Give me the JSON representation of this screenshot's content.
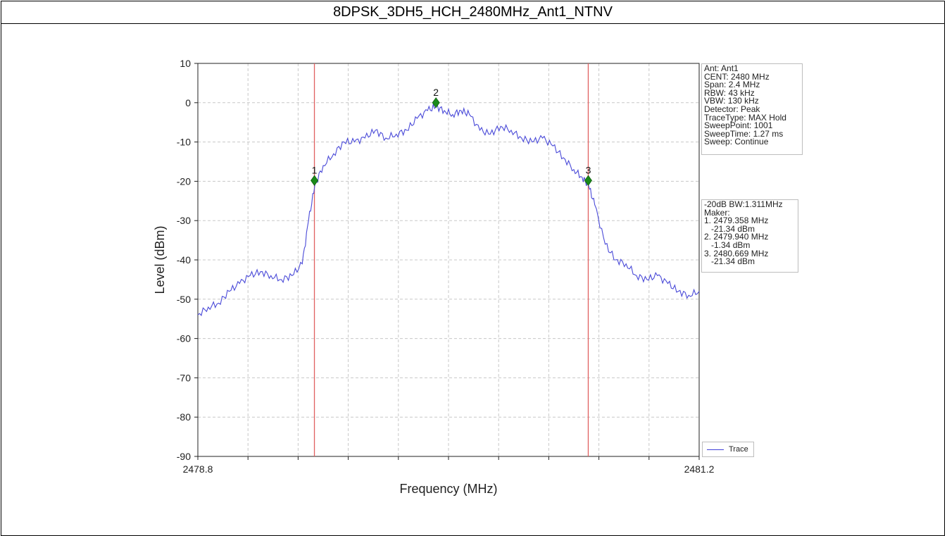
{
  "window": {
    "title": "8DPSK_3DH5_HCH_2480MHz_Ant1_NTNV"
  },
  "colors": {
    "trace": "#4a4ad8",
    "marker_line": "#e06060",
    "marker": "#1a8a1a",
    "grid": "#c8c8c8"
  },
  "info_panel": [
    "Ant: Ant1",
    "CENT: 2480 MHz",
    "Span: 2.4 MHz",
    "RBW: 43 kHz",
    "VBW: 130 kHz",
    "Detector: Peak",
    "TraceType: MAX Hold",
    "SweepPoint: 1001",
    "SweepTime: 1.27 ms",
    "Sweep: Continue"
  ],
  "marker_panel": [
    "-20dB BW:1.311MHz",
    "Maker:",
    "1. 2479.358 MHz",
    "   -21.34 dBm",
    "2. 2479.940 MHz",
    "   -1.34 dBm",
    "3. 2480.669 MHz",
    "   -21.34 dBm"
  ],
  "chart_data": {
    "type": "line",
    "xlabel": "Frequency (MHz)",
    "ylabel": "Level (dBm)",
    "xlim": [
      2478.8,
      2481.2
    ],
    "ylim": [
      -90,
      10
    ],
    "x_tick_labels": [
      "2478.8",
      "2481.2"
    ],
    "y_ticks": [
      10,
      0,
      -10,
      -20,
      -30,
      -40,
      -50,
      -60,
      -70,
      -80,
      -90
    ],
    "grid": true,
    "legend_position": "bottom-right",
    "series": [
      {
        "name": "Trace",
        "x": [
          2478.8,
          2478.85,
          2478.9,
          2478.95,
          2479.0,
          2479.05,
          2479.1,
          2479.15,
          2479.2,
          2479.25,
          2479.3,
          2479.33,
          2479.36,
          2479.4,
          2479.45,
          2479.5,
          2479.55,
          2479.6,
          2479.65,
          2479.7,
          2479.75,
          2479.8,
          2479.85,
          2479.9,
          2479.94,
          2479.98,
          2480.02,
          2480.06,
          2480.1,
          2480.15,
          2480.2,
          2480.25,
          2480.3,
          2480.35,
          2480.4,
          2480.45,
          2480.5,
          2480.55,
          2480.6,
          2480.64,
          2480.67,
          2480.7,
          2480.75,
          2480.8,
          2480.85,
          2480.9,
          2480.95,
          2481.0,
          2481.05,
          2481.1,
          2481.15,
          2481.2
        ],
        "y": [
          -54,
          -52,
          -51,
          -48,
          -46,
          -44,
          -43,
          -44,
          -45,
          -44,
          -41,
          -30,
          -21,
          -16,
          -13,
          -10,
          -10,
          -9,
          -7,
          -9,
          -8,
          -7,
          -4,
          -2,
          -1,
          -2,
          -3,
          -2,
          -3,
          -7,
          -8,
          -6,
          -7,
          -9,
          -10,
          -9,
          -11,
          -14,
          -17,
          -19,
          -21,
          -26,
          -36,
          -40,
          -41,
          -44,
          -45,
          -44,
          -46,
          -48,
          -49,
          -48
        ]
      }
    ],
    "markers": [
      {
        "label": "1",
        "x": 2479.358,
        "y": -19.8
      },
      {
        "label": "2",
        "x": 2479.94,
        "y": 0.0
      },
      {
        "label": "3",
        "x": 2480.669,
        "y": -19.8
      }
    ]
  }
}
